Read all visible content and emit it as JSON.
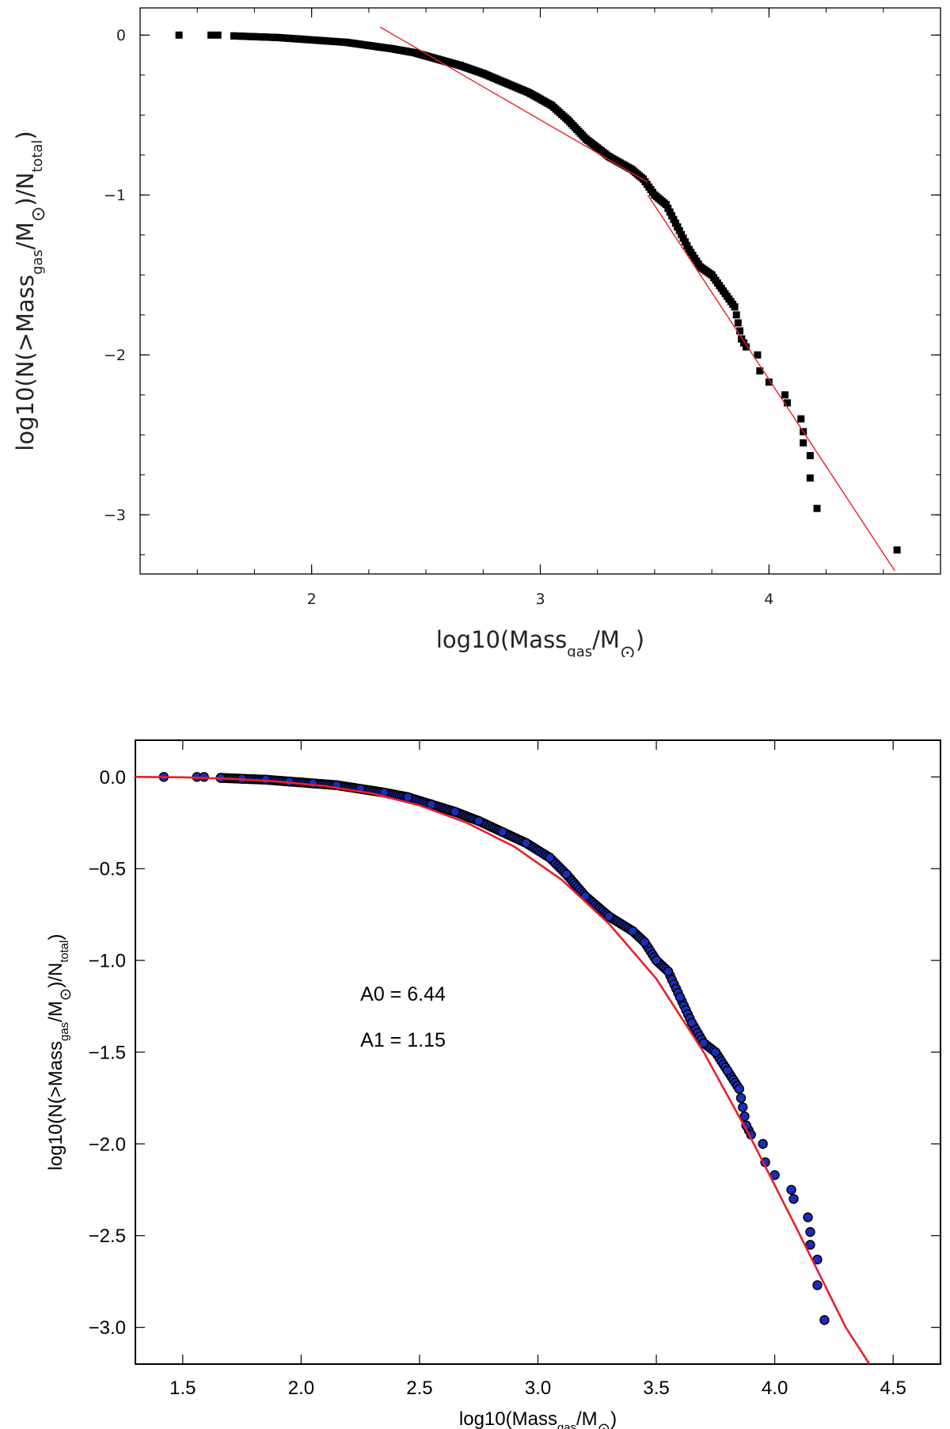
{
  "chart_data": [
    {
      "type": "scatter",
      "title": "",
      "xlabel": {
        "base": "log10(Mass",
        "sub": "gas",
        "rest": "/M",
        "sym": "⊙",
        "end": ")"
      },
      "ylabel": {
        "base": "log10(N(>Mass",
        "sub": "gas",
        "mid": "/M",
        "sym": "⊙",
        "rest": ")/N",
        "sub2": "total",
        "end": ")"
      },
      "xlim": [
        1.25,
        4.75
      ],
      "ylim": [
        -3.37,
        0.17
      ],
      "xticks": [
        {
          "v": 2,
          "label": "2"
        },
        {
          "v": 3,
          "label": "3"
        },
        {
          "v": 4,
          "label": "4"
        }
      ],
      "yticks": [
        {
          "v": 0,
          "label": "0"
        },
        {
          "v": -1,
          "label": "−1"
        },
        {
          "v": -2,
          "label": "−2"
        },
        {
          "v": -3,
          "label": "−3"
        }
      ],
      "grid": false,
      "marker": "square",
      "colors": {
        "points": "#000000",
        "fit": "#e8202a"
      },
      "series": [
        {
          "points": [
            [
              1.42,
              0.0
            ],
            [
              1.56,
              0.0
            ],
            [
              1.59,
              0.0
            ],
            [
              1.66,
              -0.005
            ],
            [
              1.75,
              -0.01
            ],
            [
              1.85,
              -0.015
            ],
            [
              1.95,
              -0.025
            ],
            [
              2.05,
              -0.035
            ],
            [
              2.15,
              -0.045
            ],
            [
              2.25,
              -0.065
            ],
            [
              2.35,
              -0.085
            ],
            [
              2.45,
              -0.11
            ],
            [
              2.55,
              -0.15
            ],
            [
              2.65,
              -0.19
            ],
            [
              2.75,
              -0.24
            ],
            [
              2.85,
              -0.3
            ],
            [
              2.95,
              -0.36
            ],
            [
              3.05,
              -0.44
            ],
            [
              3.12,
              -0.53
            ],
            [
              3.2,
              -0.65
            ],
            [
              3.3,
              -0.76
            ],
            [
              3.4,
              -0.84
            ],
            [
              3.45,
              -0.9
            ],
            [
              3.5,
              -1.0
            ],
            [
              3.55,
              -1.06
            ],
            [
              3.6,
              -1.2
            ],
            [
              3.65,
              -1.34
            ],
            [
              3.7,
              -1.45
            ],
            [
              3.75,
              -1.5
            ],
            [
              3.8,
              -1.6
            ],
            [
              3.85,
              -1.7
            ],
            [
              3.88,
              -1.9
            ],
            [
              3.9,
              -1.95
            ],
            [
              3.95,
              -2.0
            ],
            [
              3.96,
              -2.1
            ],
            [
              4.0,
              -2.17
            ],
            [
              4.07,
              -2.25
            ],
            [
              4.08,
              -2.3
            ],
            [
              4.14,
              -2.4
            ],
            [
              4.15,
              -2.48
            ],
            [
              4.15,
              -2.55
            ],
            [
              4.18,
              -2.63
            ],
            [
              4.18,
              -2.77
            ],
            [
              4.21,
              -2.96
            ],
            [
              4.56,
              -3.22
            ]
          ]
        }
      ],
      "fits": [
        {
          "points": [
            [
              2.3,
              0.05
            ],
            [
              3.47,
              -0.92
            ]
          ]
        },
        {
          "points": [
            [
              3.47,
              -1.0
            ],
            [
              4.55,
              -3.35
            ]
          ]
        }
      ]
    },
    {
      "type": "scatter",
      "title": "",
      "xlabel": {
        "base": "log10(Mass",
        "sub": "gas",
        "rest": "/M",
        "sym": "⊙",
        "end": ")"
      },
      "ylabel": {
        "base": "log10(N(>Mass",
        "sub": "gas",
        "mid": "/M",
        "sym": "⊙",
        "rest": ")/N",
        "sub2": "total",
        "end": ")"
      },
      "xlim": [
        1.3,
        4.7
      ],
      "ylim": [
        -3.2,
        0.2
      ],
      "xticks": [
        {
          "v": 1.5,
          "label": "1.5"
        },
        {
          "v": 2.0,
          "label": "2.0"
        },
        {
          "v": 2.5,
          "label": "2.5"
        },
        {
          "v": 3.0,
          "label": "3.0"
        },
        {
          "v": 3.5,
          "label": "3.5"
        },
        {
          "v": 4.0,
          "label": "4.0"
        },
        {
          "v": 4.5,
          "label": "4.5"
        }
      ],
      "yticks": [
        {
          "v": 0,
          "label": "0.0"
        },
        {
          "v": -0.5,
          "label": "−0.5"
        },
        {
          "v": -1.0,
          "label": "−1.0"
        },
        {
          "v": -1.5,
          "label": "−1.5"
        },
        {
          "v": -2.0,
          "label": "−2.0"
        },
        {
          "v": -2.5,
          "label": "−2.5"
        },
        {
          "v": -3.0,
          "label": "−3.0"
        }
      ],
      "grid": false,
      "marker": "circle",
      "colors": {
        "points": "#1b2db8",
        "point_edge": "#000000",
        "fit": "#e8202a"
      },
      "annotations": [
        {
          "text": "A0 = 6.44",
          "x": 2.25,
          "y": -1.22
        },
        {
          "text": "A1 = 1.15",
          "x": 2.25,
          "y": -1.47
        }
      ],
      "series": [
        {
          "points": [
            [
              1.42,
              0.0
            ],
            [
              1.56,
              0.0
            ],
            [
              1.59,
              0.0
            ],
            [
              1.66,
              -0.005
            ],
            [
              1.75,
              -0.01
            ],
            [
              1.85,
              -0.015
            ],
            [
              1.95,
              -0.025
            ],
            [
              2.05,
              -0.035
            ],
            [
              2.15,
              -0.045
            ],
            [
              2.25,
              -0.065
            ],
            [
              2.35,
              -0.085
            ],
            [
              2.45,
              -0.11
            ],
            [
              2.55,
              -0.15
            ],
            [
              2.65,
              -0.19
            ],
            [
              2.75,
              -0.24
            ],
            [
              2.85,
              -0.3
            ],
            [
              2.95,
              -0.36
            ],
            [
              3.05,
              -0.44
            ],
            [
              3.12,
              -0.53
            ],
            [
              3.2,
              -0.65
            ],
            [
              3.3,
              -0.76
            ],
            [
              3.4,
              -0.84
            ],
            [
              3.45,
              -0.9
            ],
            [
              3.5,
              -1.0
            ],
            [
              3.55,
              -1.06
            ],
            [
              3.6,
              -1.2
            ],
            [
              3.65,
              -1.34
            ],
            [
              3.7,
              -1.45
            ],
            [
              3.75,
              -1.5
            ],
            [
              3.8,
              -1.6
            ],
            [
              3.85,
              -1.7
            ],
            [
              3.88,
              -1.9
            ],
            [
              3.9,
              -1.95
            ],
            [
              3.95,
              -2.0
            ],
            [
              3.96,
              -2.1
            ],
            [
              4.0,
              -2.17
            ],
            [
              4.07,
              -2.25
            ],
            [
              4.08,
              -2.3
            ],
            [
              4.14,
              -2.4
            ],
            [
              4.15,
              -2.48
            ],
            [
              4.15,
              -2.55
            ],
            [
              4.18,
              -2.63
            ],
            [
              4.18,
              -2.77
            ],
            [
              4.21,
              -2.96
            ]
          ]
        }
      ],
      "fit_curve": {
        "points": [
          [
            1.3,
            0.0
          ],
          [
            1.5,
            -0.002
          ],
          [
            1.7,
            -0.01
          ],
          [
            1.9,
            -0.025
          ],
          [
            2.1,
            -0.05
          ],
          [
            2.3,
            -0.09
          ],
          [
            2.5,
            -0.155
          ],
          [
            2.7,
            -0.25
          ],
          [
            2.9,
            -0.38
          ],
          [
            3.1,
            -0.56
          ],
          [
            3.3,
            -0.8
          ],
          [
            3.5,
            -1.1
          ],
          [
            3.7,
            -1.5
          ],
          [
            3.9,
            -1.97
          ],
          [
            4.1,
            -2.48
          ],
          [
            4.3,
            -3.0
          ],
          [
            4.4,
            -3.2
          ]
        ]
      }
    }
  ]
}
